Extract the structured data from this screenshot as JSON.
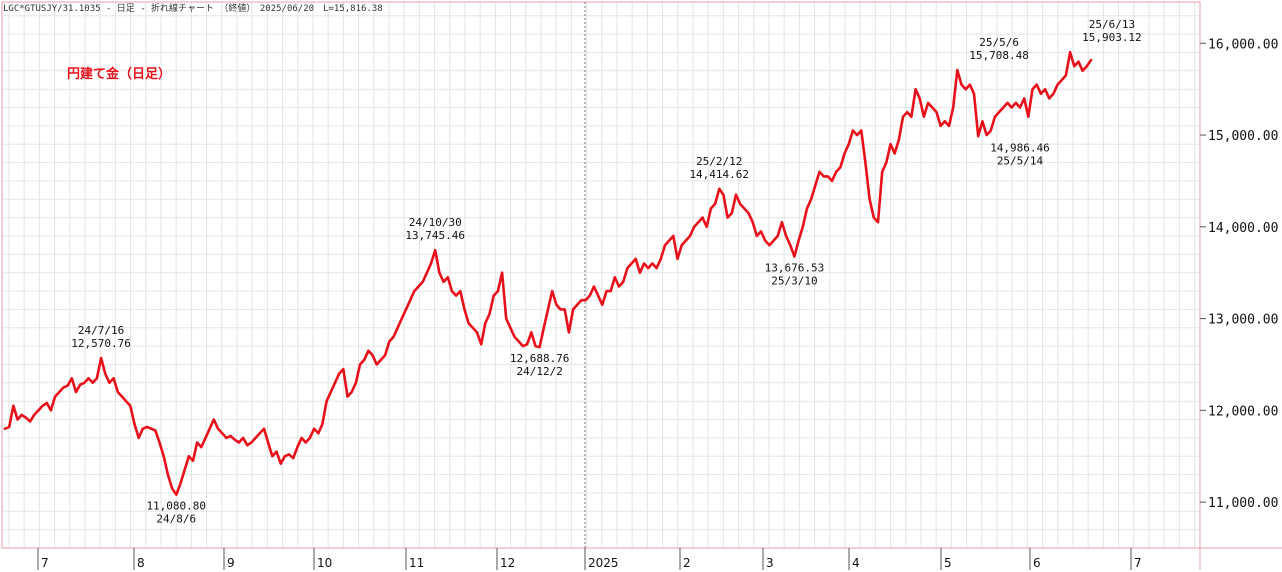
{
  "header": {
    "text": "LGC*GTUSJY/31.1035 - 日足 - 折れ線チャート （終値）　2025/06/20　L=15,816.38"
  },
  "chart_data": {
    "type": "line",
    "label": "円建て金（日足）",
    "ylim": [
      10500,
      16450
    ],
    "y_ticks": [
      {
        "value": 11000,
        "label": "11,000.00"
      },
      {
        "value": 12000,
        "label": "12,000.00"
      },
      {
        "value": 13000,
        "label": "13,000.00"
      },
      {
        "value": 14000,
        "label": "14,000.00"
      },
      {
        "value": 15000,
        "label": "15,000.00"
      },
      {
        "value": 16000,
        "label": "16,000.00"
      }
    ],
    "x_labels": [
      "7",
      "8",
      "9",
      "10",
      "11",
      "12",
      "2025",
      "2",
      "3",
      "4",
      "5",
      "6",
      "7"
    ],
    "grid": true,
    "line_color": "#e8101a",
    "series": [
      {
        "values": [
          11800,
          11820,
          12050,
          11900,
          11950,
          11920,
          11880,
          11950,
          12000,
          12050,
          12080,
          12000,
          12150,
          12200,
          12250,
          12270,
          12350,
          12200,
          12280,
          12300,
          12350,
          12300,
          12350,
          12570.76,
          12400,
          12300,
          12350,
          12200,
          12150,
          12100,
          12050,
          11850,
          11700,
          11800,
          11820,
          11800,
          11780,
          11650,
          11500,
          11300,
          11150,
          11080.8,
          11200,
          11350,
          11500,
          11450,
          11650,
          11600,
          11700,
          11800,
          11900,
          11800,
          11750,
          11700,
          11720,
          11680,
          11650,
          11700,
          11620,
          11650,
          11700,
          11750,
          11800,
          11650,
          11500,
          11550,
          11420,
          11500,
          11520,
          11480,
          11600,
          11700,
          11650,
          11700,
          11800,
          11750,
          11850,
          12100,
          12200,
          12300,
          12400,
          12450,
          12150,
          12200,
          12300,
          12500,
          12550,
          12650,
          12600,
          12500,
          12550,
          12600,
          12750,
          12800,
          12900,
          13000,
          13100,
          13200,
          13300,
          13350,
          13400,
          13500,
          13600,
          13745.46,
          13500,
          13400,
          13450,
          13300,
          13250,
          13300,
          13100,
          12950,
          12900,
          12850,
          12720,
          12950,
          13050,
          13250,
          13300,
          13500,
          13000,
          12900,
          12800,
          12750,
          12700,
          12720,
          12850,
          12700,
          12688.76,
          12900,
          13100,
          13300,
          13150,
          13100,
          13100,
          12850,
          13100,
          13150,
          13200,
          13200,
          13250,
          13350,
          13250,
          13150,
          13300,
          13300,
          13450,
          13350,
          13400,
          13550,
          13600,
          13650,
          13500,
          13600,
          13550,
          13600,
          13550,
          13650,
          13800,
          13850,
          13900,
          13650,
          13800,
          13850,
          13900,
          14000,
          14050,
          14100,
          14000,
          14200,
          14250,
          14414.62,
          14350,
          14100,
          14150,
          14350,
          14250,
          14200,
          14150,
          14050,
          13900,
          13950,
          13850,
          13800,
          13850,
          13900,
          14050,
          13900,
          13800,
          13676.53,
          13850,
          14000,
          14200,
          14300,
          14450,
          14600,
          14550,
          14550,
          14500,
          14600,
          14650,
          14800,
          14900,
          15050,
          15000,
          15050,
          14700,
          14300,
          14100,
          14050,
          14600,
          14700,
          14900,
          14800,
          14950,
          15200,
          15250,
          15200,
          15500,
          15400,
          15200,
          15350,
          15300,
          15250,
          15100,
          15150,
          15100,
          15300,
          15708.48,
          15550,
          15500,
          15550,
          15450,
          14986.46,
          15150,
          15000,
          15050,
          15200,
          15250,
          15300,
          15350,
          15300,
          15350,
          15300,
          15400,
          15200,
          15500,
          15550,
          15450,
          15500,
          15400,
          15450,
          15550,
          15600,
          15650,
          15903.12,
          15750,
          15800,
          15700,
          15750,
          15816.38
        ]
      }
    ],
    "annotations": [
      {
        "index": 23,
        "value": 12570.76,
        "date": "24/7/16",
        "value_label": "12,570.76",
        "position": "above"
      },
      {
        "index": 41,
        "value": 11080.8,
        "date": "24/8/6",
        "value_label": "11,080.80",
        "position": "below"
      },
      {
        "index": 103,
        "value": 13745.46,
        "date": "24/10/30",
        "value_label": "13,745.46",
        "position": "above"
      },
      {
        "index": 128,
        "value": 12688.76,
        "date": "24/12/2",
        "value_label": "12,688.76",
        "position": "below"
      },
      {
        "index": 171,
        "value": 14414.62,
        "date": "25/2/12",
        "value_label": "14,414.62",
        "position": "above"
      },
      {
        "index": 189,
        "value": 13676.53,
        "date": "25/3/10",
        "value_label": "13,676.53",
        "position": "below"
      },
      {
        "index": 238,
        "value": 15708.48,
        "date": "25/5/6",
        "value_label": "15,708.48",
        "position": "above"
      },
      {
        "index": 243,
        "value": 14986.46,
        "date": "25/5/14",
        "value_label": "14,986.46",
        "position": "below"
      },
      {
        "index": 265,
        "value": 15903.12,
        "date": "25/6/13",
        "value_label": "15,903.12",
        "position": "above"
      }
    ]
  }
}
